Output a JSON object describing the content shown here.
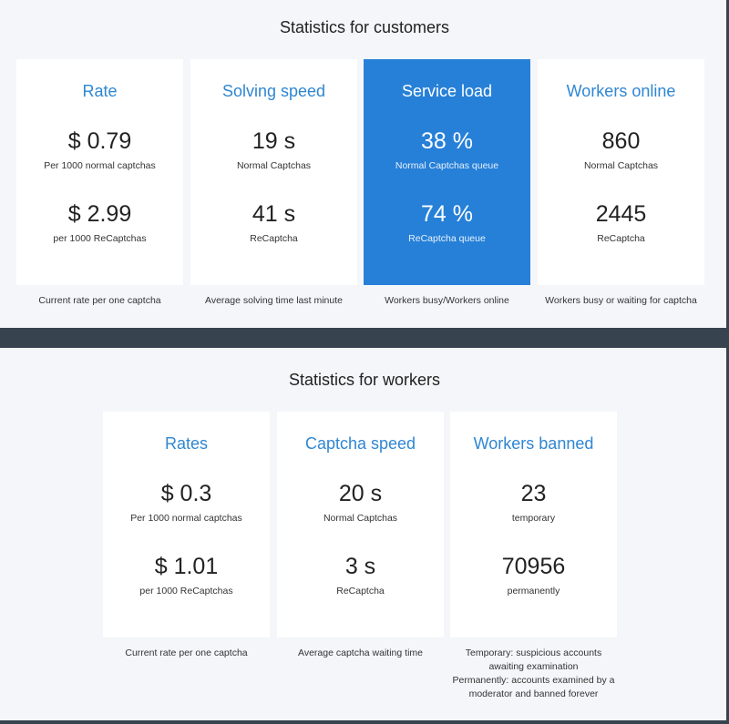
{
  "customers": {
    "title": "Statistics for customers",
    "cards": [
      {
        "title": "Rate",
        "value1": "$ 0.79",
        "label1": "Per 1000 normal captchas",
        "value2": "$ 2.99",
        "label2": "per 1000 ReCaptchas",
        "caption": "Current rate per one captcha"
      },
      {
        "title": "Solving speed",
        "value1": "19 s",
        "label1": "Normal Captchas",
        "value2": "41 s",
        "label2": "ReCaptcha",
        "caption": "Average solving time last minute"
      },
      {
        "title": "Service load",
        "value1": "38 %",
        "label1": "Normal Captchas queue",
        "value2": "74 %",
        "label2": "ReCaptcha queue",
        "caption": "Workers busy/Workers online"
      },
      {
        "title": "Workers online",
        "value1": "860",
        "label1": "Normal Captchas",
        "value2": "2445",
        "label2": "ReCaptcha",
        "caption": "Workers busy or waiting for captcha"
      }
    ]
  },
  "workers": {
    "title": "Statistics for workers",
    "cards": [
      {
        "title": "Rates",
        "value1": "$ 0.3",
        "label1": "Per 1000 normal captchas",
        "value2": "$ 1.01",
        "label2": "per 1000 ReCaptchas",
        "caption": "Current rate per one captcha"
      },
      {
        "title": "Captcha speed",
        "value1": "20 s",
        "label1": "Normal Captchas",
        "value2": "3 s",
        "label2": "ReCaptcha",
        "caption": "Average captcha waiting time"
      },
      {
        "title": "Workers banned",
        "value1": "23",
        "label1": "temporary",
        "value2": "70956",
        "label2": "permanently",
        "caption_lines": [
          "Temporary: suspicious accounts",
          "awaiting examination",
          "Permanently: accounts examined by a",
          "moderator and banned forever"
        ]
      }
    ]
  },
  "colors": {
    "accent": "#2680d8",
    "title_blue": "#2f86d2",
    "dark_band": "#37444f",
    "background": "#f4f6f9"
  }
}
